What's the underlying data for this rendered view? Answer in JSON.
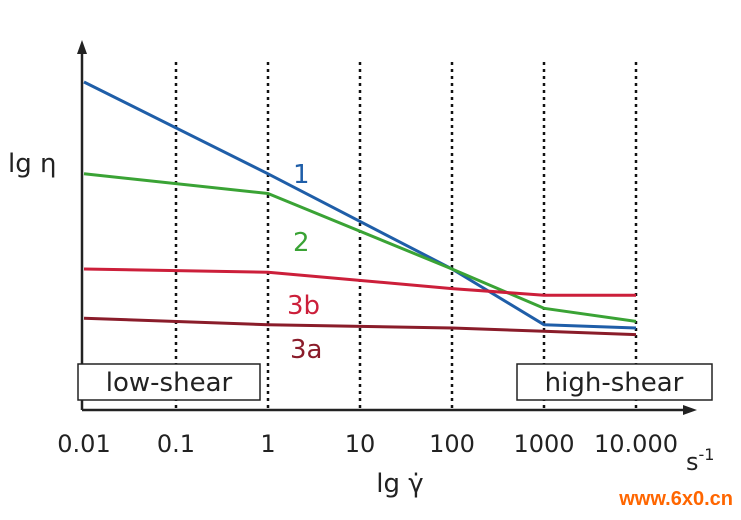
{
  "chart_data": {
    "type": "line",
    "title": "",
    "xlabel": "lg γ̇",
    "ylabel": "lg η",
    "x_unit": "s",
    "x_unit_exp": "-1",
    "x_scale": "log",
    "x_ticks": [
      "0.01",
      "0.1",
      "1",
      "10",
      "100",
      "1000",
      "10.000"
    ],
    "x_tick_values": [
      0.01,
      0.1,
      1,
      10,
      100,
      1000,
      10000
    ],
    "xlim": [
      0.01,
      10000
    ],
    "y_scale": "relative, unlabeled",
    "ylim": [
      0,
      100
    ],
    "grid": "vertical dotted lines at each decade",
    "regions": {
      "low": "low-shear",
      "high": "high-shear"
    },
    "series": [
      {
        "name": "1",
        "color": "#1f5ea8",
        "x": [
          0.01,
          1,
          100,
          1000,
          10000
        ],
        "y": [
          100,
          72,
          43,
          26,
          25
        ]
      },
      {
        "name": "2",
        "color": "#3aa335",
        "x": [
          0.01,
          1,
          100,
          1000,
          10000
        ],
        "y": [
          72,
          66,
          43,
          31,
          27
        ]
      },
      {
        "name": "3b",
        "color": "#cc1f3a",
        "x": [
          0.01,
          1,
          100,
          1000,
          10000
        ],
        "y": [
          43,
          42,
          37,
          35,
          35
        ]
      },
      {
        "name": "3a",
        "color": "#8a1c2a",
        "x": [
          0.01,
          1,
          100,
          1000,
          10000
        ],
        "y": [
          28,
          26,
          25,
          24,
          23
        ]
      }
    ]
  },
  "watermark": "www.6x0.cn"
}
